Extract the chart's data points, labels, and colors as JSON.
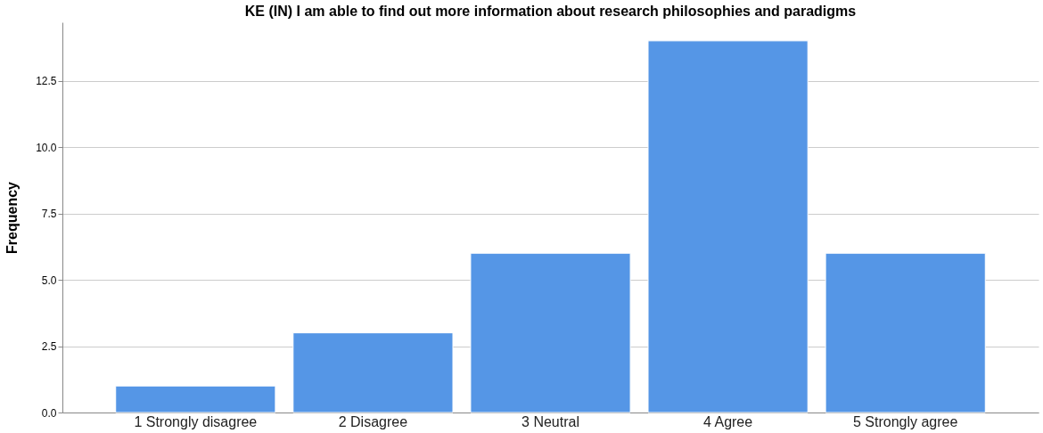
{
  "chart_data": {
    "type": "bar",
    "title": "KE (IN) I am able to find out more information about research philosophies and paradigms",
    "ylabel": "Frequency",
    "categories": [
      "1 Strongly disagree",
      "2 Disagree",
      "3 Neutral",
      "4 Agree",
      "5 Strongly agree"
    ],
    "values": [
      1,
      3,
      6,
      14,
      6
    ],
    "color": "#5596e6",
    "ylim": [
      0,
      14.7
    ],
    "yticks": [
      {
        "value": 0,
        "label": "0.0"
      },
      {
        "value": 2.5,
        "label": "2.5"
      },
      {
        "value": 5,
        "label": "5.0"
      },
      {
        "value": 7.5,
        "label": "7.5"
      },
      {
        "value": 10,
        "label": "10.0"
      },
      {
        "value": 12.5,
        "label": "12.5"
      }
    ],
    "grid": "y"
  }
}
